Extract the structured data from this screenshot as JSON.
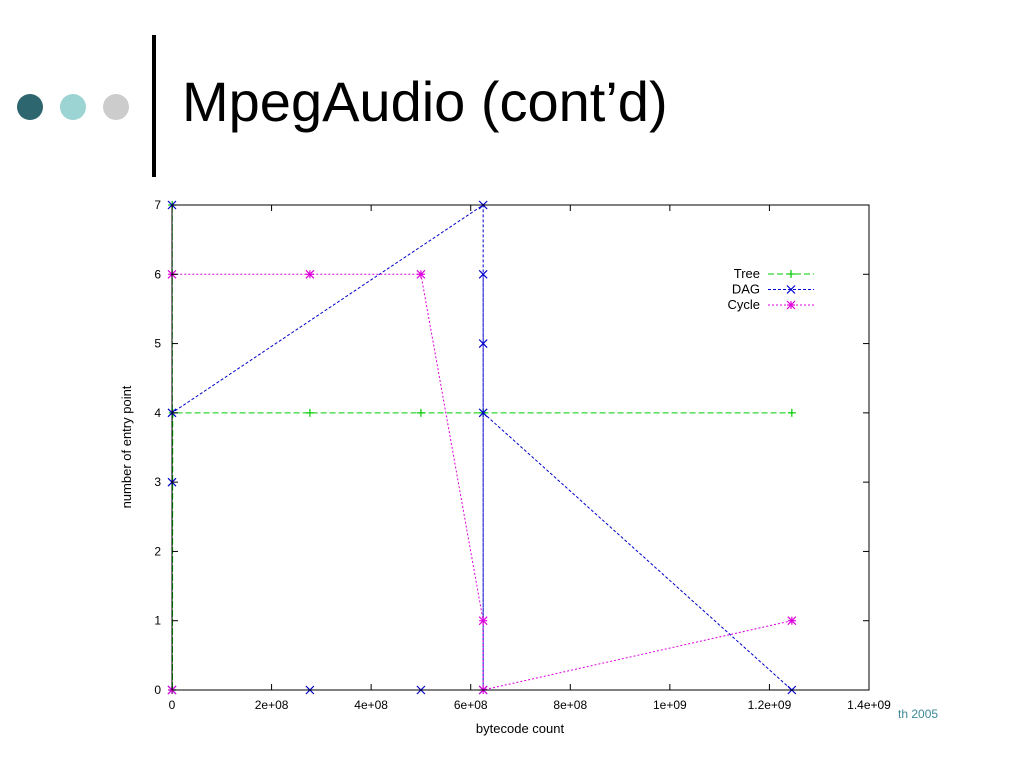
{
  "slide": {
    "title": "MpegAudio (cont’d)",
    "footer": "th 2005",
    "colors": {
      "dot1": "#2e6670",
      "dot2": "#9cd3d3",
      "dot3": "#cccccc",
      "bar": "#000000",
      "footer": "#3d8a96"
    }
  },
  "chart_data": {
    "type": "line",
    "xlabel": "bytecode count",
    "ylabel": "number of entry point",
    "xlim": [
      0,
      1400000000
    ],
    "ylim": [
      0,
      7
    ],
    "xticks": [
      {
        "value": 0,
        "label": "0"
      },
      {
        "value": 200000000,
        "label": "2e+08"
      },
      {
        "value": 400000000,
        "label": "4e+08"
      },
      {
        "value": 600000000,
        "label": "6e+08"
      },
      {
        "value": 800000000,
        "label": "8e+08"
      },
      {
        "value": 1000000000,
        "label": "1e+09"
      },
      {
        "value": 1200000000,
        "label": "1.2e+09"
      },
      {
        "value": 1400000000,
        "label": "1.4e+09"
      }
    ],
    "yticks": [
      {
        "value": 0,
        "label": "0"
      },
      {
        "value": 1,
        "label": "1"
      },
      {
        "value": 2,
        "label": "2"
      },
      {
        "value": 3,
        "label": "3"
      },
      {
        "value": 4,
        "label": "4"
      },
      {
        "value": 5,
        "label": "5"
      },
      {
        "value": 6,
        "label": "6"
      },
      {
        "value": 7,
        "label": "7"
      }
    ],
    "grid": false,
    "legend_position": "top-right",
    "series": [
      {
        "name": "Tree",
        "color": "#00cc00",
        "marker": "plus",
        "dash": "6,3",
        "points": [
          [
            0,
            0
          ],
          [
            500000,
            7
          ],
          [
            1000000,
            0
          ],
          [
            1500000,
            4
          ],
          [
            277000000,
            4
          ],
          [
            500000000,
            4
          ],
          [
            625000000,
            4
          ],
          [
            1245000000,
            4
          ]
        ]
      },
      {
        "name": "DAG",
        "color": "#0000cc",
        "marker": "x",
        "dash": "3,2",
        "points": [
          [
            0,
            0
          ],
          [
            0,
            7
          ],
          [
            0,
            3
          ],
          [
            0,
            4
          ],
          [
            625000000,
            7
          ],
          [
            625000000,
            0
          ],
          [
            625000000,
            6
          ],
          [
            625000000,
            5
          ],
          [
            625000000,
            4
          ],
          [
            1245000000,
            0
          ]
        ],
        "extra_markers": [
          [
            277000000,
            0
          ],
          [
            500000000,
            0
          ]
        ]
      },
      {
        "name": "Cycle",
        "color": "#dd00dd",
        "marker": "star",
        "dash": "2,2",
        "points": [
          [
            0,
            0
          ],
          [
            0,
            6
          ],
          [
            277000000,
            6
          ],
          [
            500000000,
            6
          ],
          [
            625000000,
            1
          ],
          [
            625000000,
            0
          ],
          [
            1245000000,
            1
          ]
        ]
      }
    ]
  }
}
